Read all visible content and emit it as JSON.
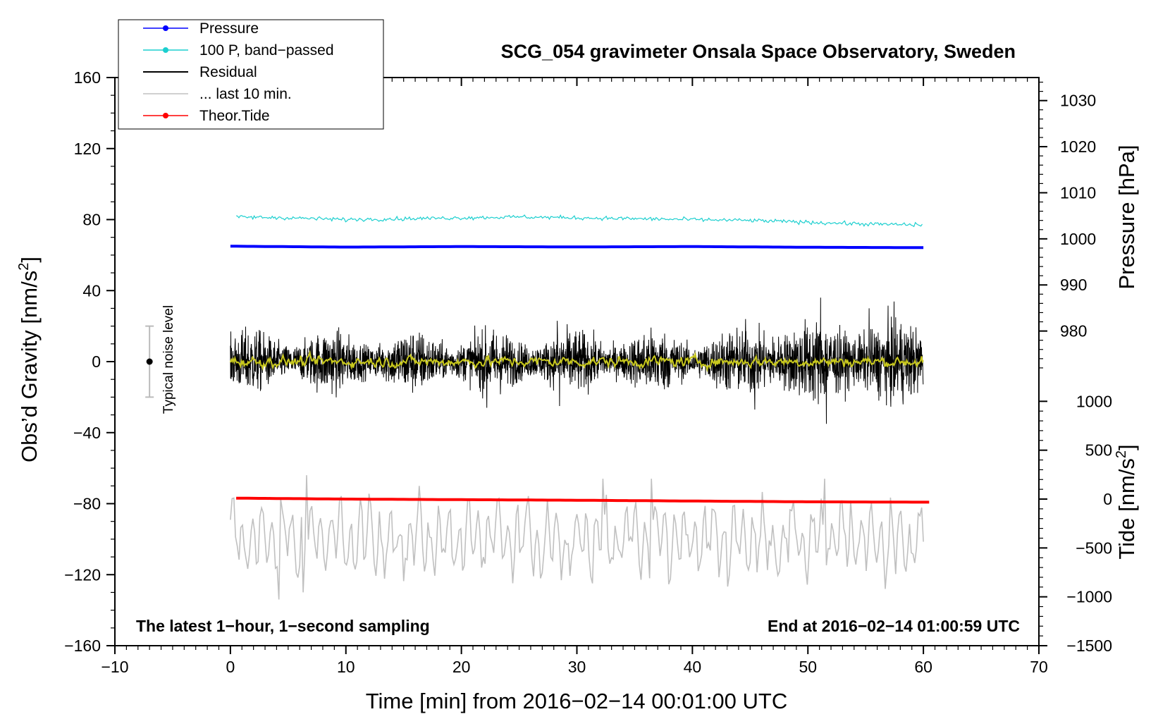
{
  "chart_data": {
    "type": "line",
    "title": "SCG_054 gravimeter Onsala Space Observatory, Sweden",
    "xlabel": "Time [min] from 2016−02−14 00:01:00 UTC",
    "ylabel_left_main": "Obs’d Gravity [nm/s",
    "ylabel_left_sup": "2",
    "ylabel_left_close": "]",
    "ylabel_right_pressure": "Pressure [hPa]",
    "ylabel_right_tide_main": "Tide [nm/s",
    "ylabel_right_tide_sup": "2",
    "ylabel_right_tide_close": "]",
    "xlim": [
      -10,
      70
    ],
    "ylim": [
      -160,
      160
    ],
    "x_ticks": [
      "−10",
      "0",
      "10",
      "20",
      "30",
      "40",
      "50",
      "60",
      "70"
    ],
    "x_tick_values": [
      -10,
      0,
      10,
      20,
      30,
      40,
      50,
      60,
      70
    ],
    "y_ticks": [
      "160",
      "120",
      "80",
      "40",
      "0",
      "−40",
      "−80",
      "−120",
      "−160"
    ],
    "y_tick_values": [
      160,
      120,
      80,
      40,
      0,
      -40,
      -80,
      -120,
      -160
    ],
    "pressure_axis": {
      "range_hPa": [
        1035,
        970
      ],
      "ticks": [
        "1030",
        "1020",
        "1010",
        "1000",
        "990",
        "980"
      ],
      "tick_values": [
        1030,
        1020,
        1010,
        1000,
        990,
        980
      ]
    },
    "tide_axis": {
      "range": [
        -1500,
        1000
      ],
      "ticks": [
        "1000",
        "500",
        "0",
        "−500",
        "−1000",
        "−1500"
      ],
      "tick_values": [
        1000,
        500,
        0,
        -500,
        -1000,
        -1500
      ]
    },
    "legend": [
      {
        "label": "Pressure",
        "color": "#0000ff",
        "marker": true
      },
      {
        "label": "100 P, band−passed",
        "color": "#1ccfcf",
        "marker": true
      },
      {
        "label": "Residual",
        "color": "#000000",
        "marker": false
      },
      {
        "label": "... last 10 min.",
        "color": "#c0c0c0",
        "marker": false
      },
      {
        "label": "Theor.Tide",
        "color": "#ff0000",
        "marker": true
      }
    ],
    "series": [
      {
        "name": "Pressure",
        "axis": "gravity",
        "color": "#0000ff",
        "x": [
          0,
          10,
          20,
          30,
          40,
          50,
          60
        ],
        "y": [
          65,
          64.5,
          64.8,
          64.6,
          64.8,
          64.4,
          64.2
        ]
      },
      {
        "name": "100 P, band−passed",
        "axis": "gravity",
        "color": "#1ccfcf",
        "x": [
          0,
          5,
          10,
          15,
          20,
          25,
          30,
          35,
          40,
          45,
          50,
          55,
          60
        ],
        "y": [
          81.5,
          81,
          80,
          80.5,
          81,
          81.5,
          81,
          80.5,
          80,
          79.5,
          78.5,
          77.5,
          77
        ]
      },
      {
        "name": "Residual",
        "axis": "gravity",
        "color": "#000000",
        "x_range": [
          0,
          60
        ],
        "amplitude_typical": 12,
        "extremes": [
          36,
          -35
        ]
      },
      {
        "name": "Residual (smoothed)",
        "axis": "gravity",
        "color": "#c8c81e",
        "x_range": [
          0,
          60
        ],
        "amplitude_typical": 2
      },
      {
        "name": "... last 10 min.",
        "axis": "gravity",
        "color": "#c0c0c0",
        "x_range": [
          0,
          60
        ],
        "center": -100,
        "extremes": [
          -64,
          -134
        ]
      },
      {
        "name": "Theor.Tide",
        "axis": "tide",
        "color": "#ff0000",
        "x": [
          0,
          10,
          20,
          30,
          40,
          50,
          60.5
        ],
        "y": [
          10,
          0,
          -6,
          -12,
          -20,
          -28,
          -32
        ]
      }
    ],
    "noise_level": {
      "label": "Typical noise level",
      "x": -7,
      "center": 0,
      "halfwidth": 20
    },
    "annotations": {
      "bottom_left": "The latest 1−hour, 1−second sampling",
      "bottom_right": "End at 2016−02−14 01:00:59 UTC"
    }
  }
}
